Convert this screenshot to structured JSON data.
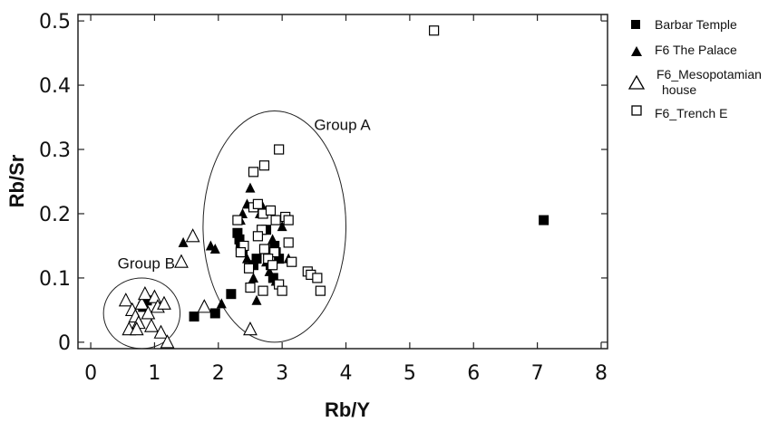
{
  "chart_data": {
    "type": "scatter",
    "title": "",
    "xlabel": "Rb/Y",
    "ylabel": "Rb/Sr",
    "xlim": [
      -0.2,
      8.1
    ],
    "ylim": [
      -0.01,
      0.51
    ],
    "xticks": [
      "0",
      "1",
      "2",
      "3",
      "4",
      "5",
      "6",
      "7",
      "8"
    ],
    "yticks": [
      "0",
      "0.1",
      "0.2",
      "0.3",
      "0.4",
      "0.5"
    ],
    "grid": false,
    "legend_position": "right",
    "series": [
      {
        "name": "Barbar Temple",
        "marker": "filled-square",
        "points": [
          [
            1.62,
            0.04
          ],
          [
            1.95,
            0.045
          ],
          [
            2.2,
            0.075
          ],
          [
            0.88,
            0.065
          ],
          [
            0.82,
            0.055
          ],
          [
            2.3,
            0.17
          ],
          [
            2.33,
            0.16
          ],
          [
            2.35,
            0.15
          ],
          [
            2.38,
            0.14
          ],
          [
            2.55,
            0.12
          ],
          [
            2.6,
            0.13
          ],
          [
            2.75,
            0.175
          ],
          [
            2.82,
            0.12
          ],
          [
            2.88,
            0.15
          ],
          [
            2.9,
            0.14
          ],
          [
            2.95,
            0.13
          ],
          [
            2.86,
            0.1
          ],
          [
            7.1,
            0.19
          ]
        ]
      },
      {
        "name": "F6  The Palace",
        "marker": "filled-triangle",
        "points": [
          [
            1.45,
            0.155
          ],
          [
            1.88,
            0.15
          ],
          [
            1.95,
            0.145
          ],
          [
            2.05,
            0.06
          ],
          [
            2.38,
            0.2
          ],
          [
            2.45,
            0.215
          ],
          [
            2.5,
            0.24
          ],
          [
            2.45,
            0.13
          ],
          [
            2.55,
            0.1
          ],
          [
            2.6,
            0.065
          ],
          [
            2.65,
            0.2
          ],
          [
            2.75,
            0.125
          ],
          [
            2.8,
            0.11
          ],
          [
            2.85,
            0.16
          ],
          [
            2.9,
            0.095
          ],
          [
            3.0,
            0.18
          ],
          [
            3.1,
            0.13
          ],
          [
            2.7,
            0.21
          ],
          [
            2.35,
            0.19
          ]
        ]
      },
      {
        "name": "F6_Mesopotamian house",
        "marker": "open-triangle",
        "points": [
          [
            0.55,
            0.065
          ],
          [
            0.6,
            0.02
          ],
          [
            0.65,
            0.05
          ],
          [
            0.7,
            0.04
          ],
          [
            0.75,
            0.03
          ],
          [
            0.8,
            0.06
          ],
          [
            0.85,
            0.075
          ],
          [
            0.9,
            0.045
          ],
          [
            0.95,
            0.025
          ],
          [
            1.0,
            0.07
          ],
          [
            1.05,
            0.055
          ],
          [
            1.1,
            0.015
          ],
          [
            1.15,
            0.06
          ],
          [
            1.2,
            0.0
          ],
          [
            0.72,
            0.02
          ],
          [
            1.42,
            0.125
          ],
          [
            1.6,
            0.165
          ],
          [
            1.78,
            0.055
          ],
          [
            2.5,
            0.02
          ]
        ]
      },
      {
        "name": "F6_Trench E",
        "marker": "open-square",
        "points": [
          [
            5.38,
            0.485
          ],
          [
            2.95,
            0.3
          ],
          [
            2.72,
            0.275
          ],
          [
            2.55,
            0.265
          ],
          [
            2.3,
            0.19
          ],
          [
            2.55,
            0.21
          ],
          [
            2.62,
            0.215
          ],
          [
            2.68,
            0.175
          ],
          [
            2.7,
            0.2
          ],
          [
            2.82,
            0.205
          ],
          [
            2.9,
            0.19
          ],
          [
            3.05,
            0.195
          ],
          [
            3.1,
            0.19
          ],
          [
            2.62,
            0.165
          ],
          [
            2.72,
            0.145
          ],
          [
            2.88,
            0.14
          ],
          [
            3.1,
            0.155
          ],
          [
            2.4,
            0.15
          ],
          [
            2.48,
            0.115
          ],
          [
            2.5,
            0.085
          ],
          [
            2.7,
            0.08
          ],
          [
            2.78,
            0.13
          ],
          [
            2.85,
            0.12
          ],
          [
            2.95,
            0.09
          ],
          [
            3.0,
            0.08
          ],
          [
            3.15,
            0.125
          ],
          [
            3.4,
            0.11
          ],
          [
            3.45,
            0.105
          ],
          [
            3.55,
            0.1
          ],
          [
            3.6,
            0.08
          ],
          [
            2.35,
            0.14
          ]
        ]
      }
    ],
    "annotations": [
      {
        "text": "Group A",
        "x": 3.5,
        "y": 0.33
      },
      {
        "text": "Group B",
        "x": 0.42,
        "y": 0.115
      }
    ],
    "ellipses": [
      {
        "name": "group-a",
        "cx": 2.88,
        "cy": 0.18,
        "rx": 1.12,
        "ry": 0.18
      },
      {
        "name": "group-b",
        "cx": 0.8,
        "cy": 0.045,
        "rx": 0.6,
        "ry": 0.055
      }
    ]
  }
}
